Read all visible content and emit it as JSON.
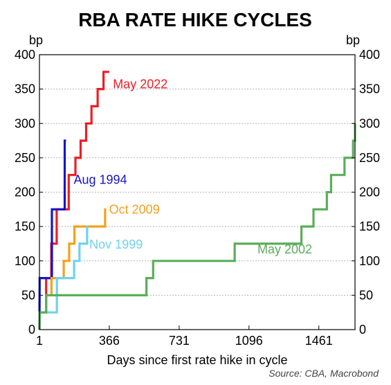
{
  "chart_data": {
    "type": "line",
    "step": true,
    "title": "RBA RATE HIKE CYCLES",
    "left_unit": "bp",
    "right_unit": "bp",
    "xlabel": "Days since first rate hike in cycle",
    "source": "Source: CBA, Macrobond",
    "xlim": [
      1,
      1650
    ],
    "ylim": [
      0,
      400
    ],
    "x_ticks": [
      1,
      366,
      731,
      1096,
      1461
    ],
    "y_ticks": [
      0,
      50,
      100,
      150,
      200,
      250,
      300,
      350,
      400
    ],
    "grid": true,
    "series": [
      {
        "name": "May 2022",
        "color": "#ee1c25",
        "points": [
          [
            1,
            0
          ],
          [
            2,
            25
          ],
          [
            36,
            25
          ],
          [
            36,
            75
          ],
          [
            63,
            75
          ],
          [
            63,
            125
          ],
          [
            91,
            125
          ],
          [
            91,
            175
          ],
          [
            154,
            175
          ],
          [
            154,
            225
          ],
          [
            189,
            225
          ],
          [
            189,
            250
          ],
          [
            216,
            250
          ],
          [
            216,
            275
          ],
          [
            245,
            275
          ],
          [
            245,
            300
          ],
          [
            273,
            300
          ],
          [
            273,
            325
          ],
          [
            305,
            325
          ],
          [
            305,
            350
          ],
          [
            336,
            350
          ],
          [
            336,
            375
          ],
          [
            366,
            375
          ]
        ]
      },
      {
        "name": "Aug 1994",
        "color": "#1515c8",
        "points": [
          [
            1,
            0
          ],
          [
            2,
            75
          ],
          [
            66,
            75
          ],
          [
            66,
            175
          ],
          [
            133,
            175
          ],
          [
            133,
            275
          ],
          [
            140,
            275
          ]
        ]
      },
      {
        "name": "Oct 2009",
        "color": "#f5a01b",
        "points": [
          [
            1,
            0
          ],
          [
            2,
            25
          ],
          [
            36,
            25
          ],
          [
            36,
            50
          ],
          [
            64,
            50
          ],
          [
            64,
            75
          ],
          [
            128,
            75
          ],
          [
            128,
            100
          ],
          [
            156,
            100
          ],
          [
            156,
            125
          ],
          [
            184,
            125
          ],
          [
            184,
            150
          ],
          [
            344,
            150
          ],
          [
            344,
            175
          ],
          [
            350,
            175
          ]
        ]
      },
      {
        "name": "Nov 1999",
        "color": "#6dd3ee",
        "points": [
          [
            1,
            0
          ],
          [
            2,
            25
          ],
          [
            92,
            25
          ],
          [
            92,
            75
          ],
          [
            182,
            75
          ],
          [
            182,
            100
          ],
          [
            210,
            100
          ],
          [
            210,
            125
          ],
          [
            250,
            125
          ],
          [
            250,
            150
          ],
          [
            255,
            150
          ]
        ]
      },
      {
        "name": "May 2002",
        "color": "#5aad5a",
        "points": [
          [
            1,
            0
          ],
          [
            2,
            25
          ],
          [
            36,
            25
          ],
          [
            36,
            50
          ],
          [
            560,
            50
          ],
          [
            560,
            75
          ],
          [
            595,
            75
          ],
          [
            595,
            100
          ],
          [
            1021,
            100
          ],
          [
            1021,
            125
          ],
          [
            1370,
            125
          ],
          [
            1370,
            150
          ],
          [
            1433,
            150
          ],
          [
            1433,
            175
          ],
          [
            1503,
            175
          ],
          [
            1503,
            200
          ],
          [
            1525,
            200
          ],
          [
            1525,
            225
          ],
          [
            1595,
            225
          ],
          [
            1595,
            250
          ],
          [
            1640,
            250
          ],
          [
            1640,
            275
          ],
          [
            1650,
            275
          ],
          [
            1650,
            300
          ]
        ]
      }
    ],
    "labels": [
      {
        "text": "May 2022",
        "color": "#ee1c25",
        "x": 385,
        "y": 357
      },
      {
        "text": "Aug 1994",
        "color": "#1515c8",
        "x": 180,
        "y": 218
      },
      {
        "text": "Oct 2009",
        "color": "#f5a01b",
        "x": 365,
        "y": 175
      },
      {
        "text": "Nov 1999",
        "color": "#6dd3ee",
        "x": 262,
        "y": 124
      },
      {
        "text": "May 2002",
        "color": "#5aad5a",
        "x": 1140,
        "y": 117
      }
    ]
  }
}
